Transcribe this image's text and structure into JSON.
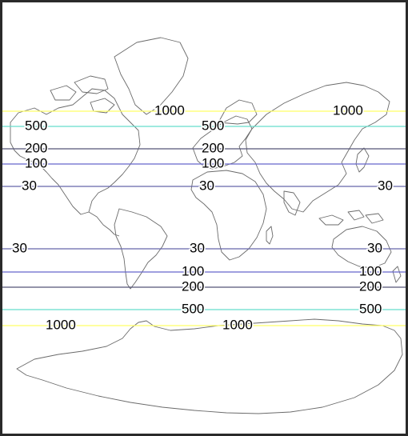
{
  "lines": [
    {
      "value": "1000",
      "color": "#ffff66",
      "labels": [
        "1000",
        "1000"
      ]
    },
    {
      "value": "500",
      "color": "#66ddcc",
      "labels": [
        "500",
        "500"
      ]
    },
    {
      "value": "200",
      "color": "#555577",
      "labels": [
        "200",
        "200"
      ]
    },
    {
      "value": "100",
      "color": "#6666cc",
      "labels": [
        "100",
        "100"
      ]
    },
    {
      "value": "30",
      "color": "#6666aa",
      "labels": [
        "30",
        "30",
        "30"
      ]
    },
    {
      "value": "30",
      "color": "#6666aa",
      "labels": [
        "30",
        "30",
        "30"
      ]
    },
    {
      "value": "100",
      "color": "#6666cc",
      "labels": [
        "100",
        "100"
      ]
    },
    {
      "value": "200",
      "color": "#555577",
      "labels": [
        "200",
        "200"
      ]
    },
    {
      "value": "500",
      "color": "#66ddcc",
      "labels": [
        "500",
        "500"
      ]
    },
    {
      "value": "1000",
      "color": "#ffff66",
      "labels": [
        "1000",
        "1000"
      ]
    }
  ]
}
